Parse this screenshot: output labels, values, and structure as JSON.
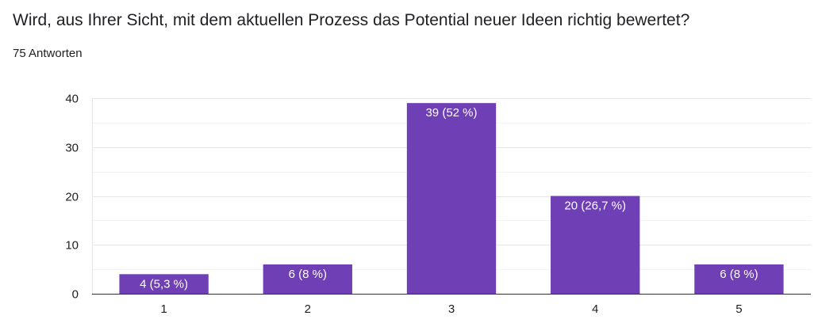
{
  "question": {
    "title": "Wird, aus Ihrer Sicht, mit dem aktuellen Prozess das Potential neuer Ideen richtig bewertet?",
    "response_count": "75 Antworten"
  },
  "colors": {
    "bar": "#6f3fb5",
    "grid_major": "#e6e6e6",
    "grid_minor": "#f3f3f3",
    "axis": "#333333",
    "tick_label": "#202124",
    "data_label": "#ffffff"
  },
  "chart_data": {
    "type": "bar",
    "title": "",
    "xlabel": "",
    "ylabel": "",
    "categories": [
      "1",
      "2",
      "3",
      "4",
      "5"
    ],
    "values": [
      4,
      6,
      39,
      20,
      6
    ],
    "data_labels": [
      "4 (5,3 %)",
      "6 (8 %)",
      "39 (52 %)",
      "20 (26,7 %)",
      "6 (8 %)"
    ],
    "ylim": [
      0,
      40
    ],
    "yticks": [
      0,
      10,
      20,
      30,
      40
    ],
    "ytick_labels": [
      "0",
      "10",
      "20",
      "30",
      "40"
    ],
    "grid": true,
    "legend": "none"
  }
}
